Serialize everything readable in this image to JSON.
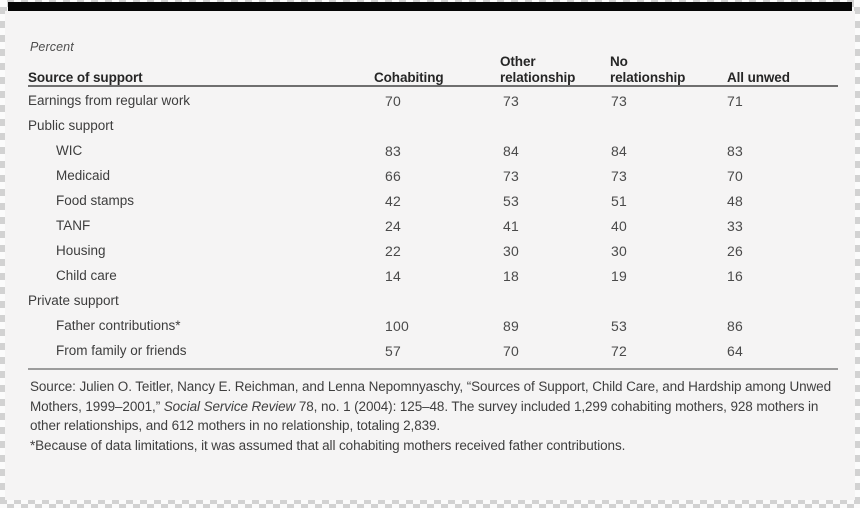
{
  "table": {
    "unit_label": "Percent",
    "columns": {
      "label": "Source of support",
      "c1": "Cohabiting",
      "c2": "Other relationship",
      "c3": "No relationship",
      "c4": "All unwed"
    },
    "rows": [
      {
        "label": "Earnings from regular work",
        "indent": 0,
        "values": [
          "70",
          "73",
          "73",
          "71"
        ]
      },
      {
        "label": "Public support",
        "indent": 0,
        "values": null
      },
      {
        "label": "WIC",
        "indent": 1,
        "values": [
          "83",
          "84",
          "84",
          "83"
        ]
      },
      {
        "label": "Medicaid",
        "indent": 1,
        "values": [
          "66",
          "73",
          "73",
          "70"
        ]
      },
      {
        "label": "Food stamps",
        "indent": 1,
        "values": [
          "42",
          "53",
          "51",
          "48"
        ]
      },
      {
        "label": "TANF",
        "indent": 1,
        "values": [
          "24",
          "41",
          "40",
          "33"
        ]
      },
      {
        "label": "Housing",
        "indent": 1,
        "values": [
          "22",
          "30",
          "30",
          "26"
        ]
      },
      {
        "label": "Child care",
        "indent": 1,
        "values": [
          "14",
          "18",
          "19",
          "16"
        ]
      },
      {
        "label": "Private support",
        "indent": 0,
        "values": null
      },
      {
        "label": "Father contributions*",
        "indent": 1,
        "values": [
          "100",
          "89",
          "53",
          "86"
        ]
      },
      {
        "label": "From family or friends",
        "indent": 1,
        "values": [
          "57",
          "70",
          "72",
          "64"
        ]
      }
    ]
  },
  "notes": {
    "source_prefix": "Source: Julien O. Teitler, Nancy E. Reichman, and Lenna Nepomnyaschy, “Sources of Support, Child Care, and Hardship among Unwed Mothers, 1999–2001,” ",
    "source_journal": "Social Service Review",
    "source_suffix": " 78, no. 1 (2004): 125–48. The survey included 1,299 cohabiting mothers, 928 mothers in other relationships, and 612 mothers in no relationship, totaling 2,839.",
    "footnote": "*Because of data limitations, it was assumed that all cohabiting mothers received father contributions."
  },
  "colors": {
    "background": "#f5f4f4",
    "top_bar": "#050505",
    "header_rule": "#6f6f6f",
    "bottom_rule": "#9c9c9c",
    "text": "#3d3d3d",
    "bold_text": "#262626"
  },
  "chart_data": {
    "type": "table",
    "title": "",
    "unit": "Percent",
    "categories": [
      "Cohabiting",
      "Other relationship",
      "No relationship",
      "All unwed"
    ],
    "series": [
      {
        "name": "Earnings from regular work",
        "group": null,
        "values": [
          70,
          73,
          73,
          71
        ]
      },
      {
        "name": "WIC",
        "group": "Public support",
        "values": [
          83,
          84,
          84,
          83
        ]
      },
      {
        "name": "Medicaid",
        "group": "Public support",
        "values": [
          66,
          73,
          73,
          70
        ]
      },
      {
        "name": "Food stamps",
        "group": "Public support",
        "values": [
          42,
          53,
          51,
          48
        ]
      },
      {
        "name": "TANF",
        "group": "Public support",
        "values": [
          24,
          41,
          40,
          33
        ]
      },
      {
        "name": "Housing",
        "group": "Public support",
        "values": [
          22,
          30,
          30,
          26
        ]
      },
      {
        "name": "Child care",
        "group": "Public support",
        "values": [
          14,
          18,
          19,
          16
        ]
      },
      {
        "name": "Father contributions*",
        "group": "Private support",
        "values": [
          100,
          89,
          53,
          86
        ]
      },
      {
        "name": "From family or friends",
        "group": "Private support",
        "values": [
          57,
          70,
          72,
          64
        ]
      }
    ]
  }
}
